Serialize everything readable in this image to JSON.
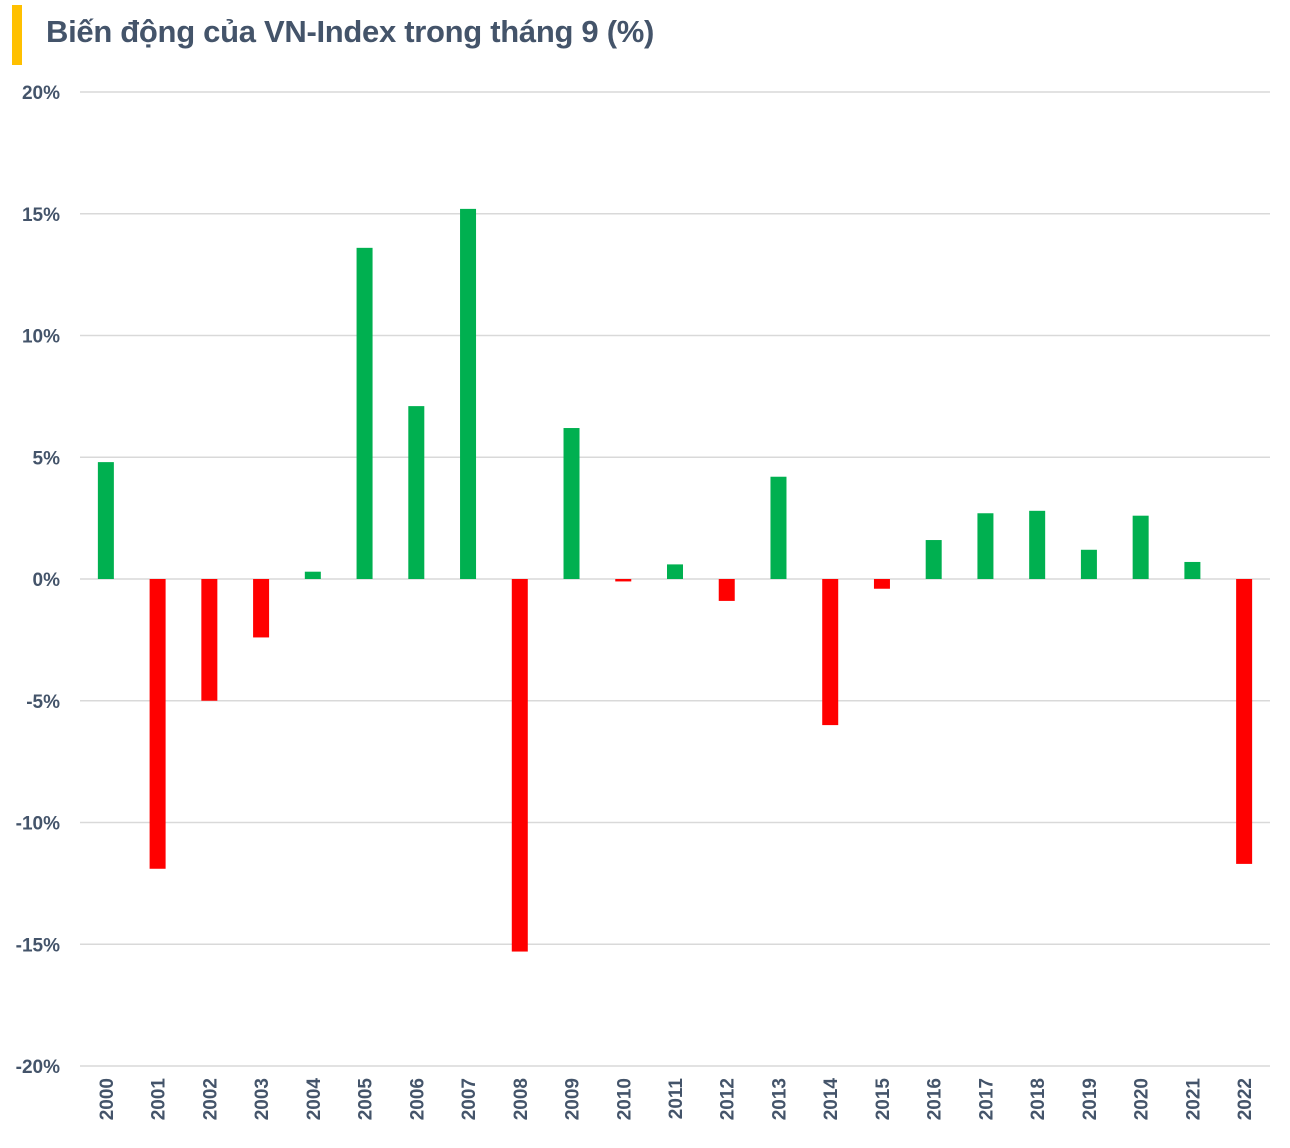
{
  "title": "Biến động của VN-Index trong tháng 9 (%)",
  "colors": {
    "accent": "#ffc000",
    "positive": "#00b050",
    "negative": "#ff0000",
    "grid": "#d9d9d9",
    "text": "#44546a"
  },
  "chart_data": {
    "type": "bar",
    "title": "Biến động của VN-Index trong tháng 9 (%)",
    "xlabel": "",
    "ylabel": "",
    "ylim": [
      -20,
      20
    ],
    "yticks": [
      20,
      15,
      10,
      5,
      0,
      -5,
      -10,
      -15,
      -20
    ],
    "ytick_labels": [
      "20%",
      "15%",
      "10%",
      "5%",
      "0%",
      "-5%",
      "-10%",
      "-15%",
      "-20%"
    ],
    "grid": true,
    "categories": [
      "2000",
      "2001",
      "2002",
      "2003",
      "2004",
      "2005",
      "2006",
      "2007",
      "2008",
      "2009",
      "2010",
      "2011",
      "2012",
      "2013",
      "2014",
      "2015",
      "2016",
      "2017",
      "2018",
      "2019",
      "2020",
      "2021",
      "2022"
    ],
    "values": [
      4.8,
      -11.9,
      -5.0,
      -2.4,
      0.3,
      13.6,
      7.1,
      15.2,
      -15.3,
      6.2,
      -0.1,
      0.6,
      -0.9,
      4.2,
      -6.0,
      -0.4,
      1.6,
      2.7,
      2.8,
      1.2,
      2.6,
      0.7,
      -11.7
    ]
  }
}
